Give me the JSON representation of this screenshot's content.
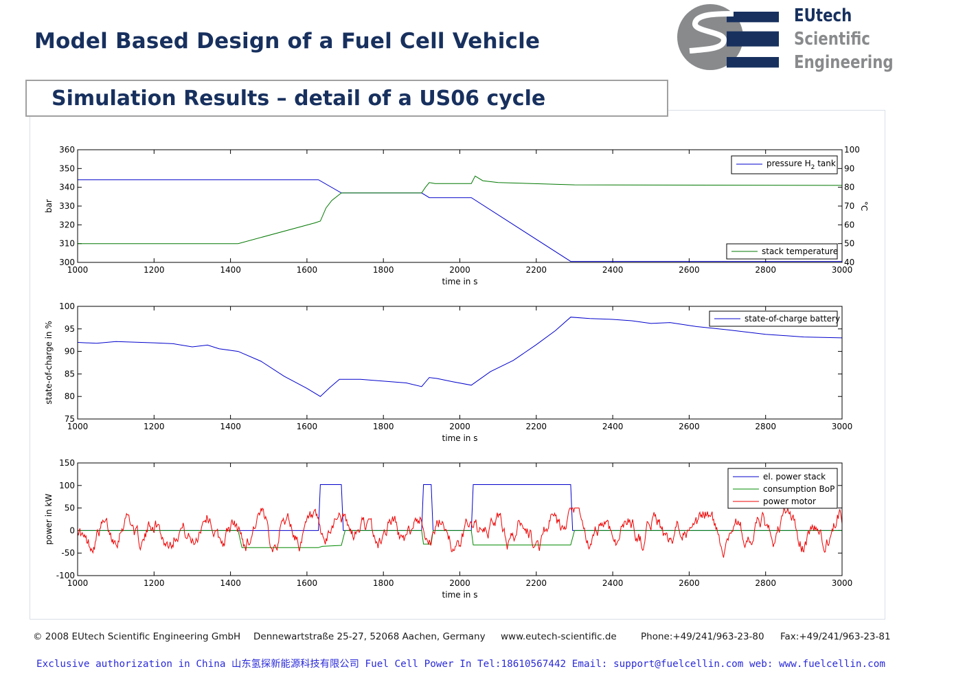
{
  "header": {
    "title": "Model Based Design of a Fuel Cell Vehicle",
    "section_title": "Simulation Results – detail of a US06 cycle",
    "logo": {
      "line1": "EUtech",
      "line2": "Scientific",
      "line3": "Engineering",
      "colors": {
        "gray": "#888a8c",
        "navy": "#17305e"
      }
    }
  },
  "footer": {
    "copyright": "© 2008 EUtech Scientific Engineering GmbH",
    "address": "Dennewartstraße 25-27, 52068 Aachen, Germany",
    "website": "www.eutech-scientific.de",
    "phone": "Phone:+49/241/963-23-80",
    "fax": "Fax:+49/241/963-23-81",
    "authorization": "Exclusive authorization in China 山东氢探新能源科技有限公司 Fuel Cell Power In Tel:18610567442 Email: support@fuelcellin.com web: www.fuelcellin.com"
  },
  "chart_data": [
    {
      "type": "line",
      "xlabel": "time in s",
      "ylabel": "bar",
      "y2label": "°C",
      "xlim": [
        1000,
        3000
      ],
      "ylim": [
        300,
        360
      ],
      "y2lim": [
        40,
        100
      ],
      "x_ticks": [
        1000,
        1200,
        1400,
        1600,
        1800,
        2000,
        2200,
        2400,
        2600,
        2800,
        3000
      ],
      "y_ticks": [
        300,
        310,
        320,
        330,
        340,
        350,
        360
      ],
      "y2_ticks": [
        40,
        50,
        60,
        70,
        80,
        90,
        100
      ],
      "legend_position": "top-right and bottom-right",
      "series": [
        {
          "name": "pressure H2 tank",
          "label_main": "pressure H",
          "label_sub": "2",
          "label_tail": " tank",
          "axis": "left",
          "color": "#0000cc",
          "points": [
            [
              1000,
              344
            ],
            [
              1630,
              344
            ],
            [
              1690,
              337
            ],
            [
              1900,
              337
            ],
            [
              1920,
              334.5
            ],
            [
              2030,
              334.5
            ],
            [
              2290,
              300.5
            ],
            [
              3000,
              300.5
            ]
          ]
        },
        {
          "name": "stack temperature",
          "axis": "right",
          "color": "#007700",
          "points": [
            [
              1000,
              50
            ],
            [
              1420,
              50
            ],
            [
              1620,
              61
            ],
            [
              1635,
              62
            ],
            [
              1650,
              69
            ],
            [
              1665,
              73
            ],
            [
              1690,
              77
            ],
            [
              1900,
              77
            ],
            [
              1910,
              80
            ],
            [
              1920,
              82.5
            ],
            [
              1935,
              82
            ],
            [
              2030,
              82
            ],
            [
              2040,
              86
            ],
            [
              2060,
              83.5
            ],
            [
              2100,
              82.5
            ],
            [
              2300,
              81.3
            ],
            [
              3000,
              81
            ]
          ]
        }
      ]
    },
    {
      "type": "line",
      "xlabel": "time in s",
      "ylabel": "state-of-charge in %",
      "xlim": [
        1000,
        3000
      ],
      "ylim": [
        75,
        100
      ],
      "x_ticks": [
        1000,
        1200,
        1400,
        1600,
        1800,
        2000,
        2200,
        2400,
        2600,
        2800,
        3000
      ],
      "y_ticks": [
        75,
        80,
        85,
        90,
        95,
        100
      ],
      "legend_position": "top-right",
      "series": [
        {
          "name": "state-of-charge battery",
          "color": "#0000cc",
          "points": [
            [
              1000,
              92
            ],
            [
              1050,
              91.8
            ],
            [
              1100,
              92.2
            ],
            [
              1200,
              91.9
            ],
            [
              1250,
              91.7
            ],
            [
              1300,
              91
            ],
            [
              1340,
              91.4
            ],
            [
              1370,
              90.6
            ],
            [
              1420,
              90
            ],
            [
              1480,
              87.8
            ],
            [
              1540,
              84.5
            ],
            [
              1600,
              81.8
            ],
            [
              1635,
              80
            ],
            [
              1660,
              82
            ],
            [
              1685,
              83.8
            ],
            [
              1740,
              83.8
            ],
            [
              1800,
              83.4
            ],
            [
              1860,
              83
            ],
            [
              1900,
              82.2
            ],
            [
              1920,
              84.2
            ],
            [
              1940,
              84
            ],
            [
              1980,
              83.3
            ],
            [
              2030,
              82.5
            ],
            [
              2080,
              85.5
            ],
            [
              2140,
              88
            ],
            [
              2200,
              91.5
            ],
            [
              2250,
              94.6
            ],
            [
              2290,
              97.6
            ],
            [
              2340,
              97.3
            ],
            [
              2400,
              97.1
            ],
            [
              2450,
              96.8
            ],
            [
              2500,
              96.2
            ],
            [
              2550,
              96.4
            ],
            [
              2620,
              95.5
            ],
            [
              2700,
              94.8
            ],
            [
              2800,
              93.8
            ],
            [
              2900,
              93.2
            ],
            [
              3000,
              93
            ]
          ]
        }
      ]
    },
    {
      "type": "line",
      "xlabel": "time in s",
      "ylabel": "power in kW",
      "xlim": [
        1000,
        3000
      ],
      "ylim": [
        -100,
        150
      ],
      "x_ticks": [
        1000,
        1200,
        1400,
        1600,
        1800,
        2000,
        2200,
        2400,
        2600,
        2800,
        3000
      ],
      "y_ticks": [
        -100,
        -50,
        0,
        50,
        100,
        150
      ],
      "legend_position": "top-right",
      "series": [
        {
          "name": "el. power stack",
          "color": "#0000cc",
          "points": [
            [
              1000,
              0
            ],
            [
              1630,
              0
            ],
            [
              1635,
              102
            ],
            [
              1690,
              102
            ],
            [
              1695,
              0
            ],
            [
              1900,
              0
            ],
            [
              1905,
              102
            ],
            [
              1925,
              102
            ],
            [
              1930,
              0
            ],
            [
              2030,
              0
            ],
            [
              2035,
              102
            ],
            [
              2290,
              102
            ],
            [
              2295,
              0
            ],
            [
              3000,
              0
            ]
          ]
        },
        {
          "name": "consumption BoP",
          "color": "#008800",
          "points": [
            [
              1000,
              0
            ],
            [
              1420,
              0
            ],
            [
              1430,
              -38
            ],
            [
              1630,
              -38
            ],
            [
              1640,
              -35
            ],
            [
              1690,
              -33
            ],
            [
              1700,
              0
            ],
            [
              1900,
              0
            ],
            [
              1905,
              -30
            ],
            [
              1925,
              -30
            ],
            [
              1930,
              0
            ],
            [
              2030,
              0
            ],
            [
              2035,
              -32
            ],
            [
              2290,
              -32
            ],
            [
              2300,
              0
            ],
            [
              3000,
              0
            ]
          ]
        },
        {
          "name": "power motor",
          "color": "#ee0000",
          "noise": true,
          "amplitude_kW": [
            -60,
            50
          ],
          "seed": 17
        }
      ]
    }
  ]
}
